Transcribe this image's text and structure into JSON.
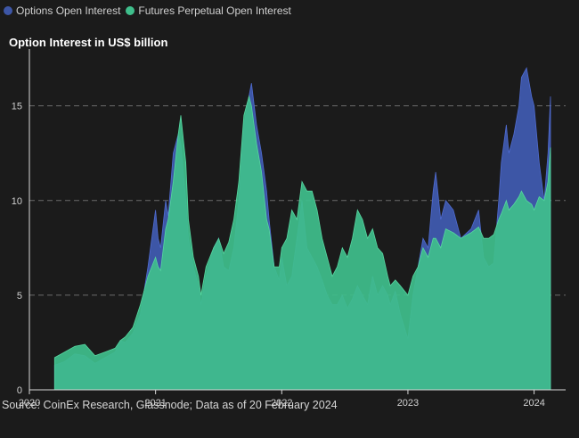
{
  "legend": {
    "items": [
      {
        "label": "Options Open Interest",
        "color": "#3d56a6"
      },
      {
        "label": "Futures Perpetual Open Interest",
        "color": "#3fbf8c"
      }
    ]
  },
  "chart_title": "Option Interest in US$ billion",
  "source": "Source: CoinEx Research, Glassnode; Data as of 20 February 2024",
  "chart_data": {
    "type": "area",
    "title": "Option Interest in US$ billion",
    "xlabel": "",
    "ylabel": "",
    "x_ticks": [
      "2020",
      "2021",
      "2022",
      "2023",
      "2024"
    ],
    "y_ticks": [
      0,
      5,
      10,
      15
    ],
    "xlim": [
      2020.0,
      2024.25
    ],
    "ylim": [
      0,
      18
    ],
    "grid": "horizontal dashed at 5, 10, 15",
    "series": [
      {
        "name": "Options Open Interest",
        "color": "#3d56a6",
        "x": [
          2020.2,
          2020.28,
          2020.36,
          2020.44,
          2020.52,
          2020.6,
          2020.68,
          2020.72,
          2020.76,
          2020.82,
          2020.88,
          2020.94,
          2021.0,
          2021.02,
          2021.04,
          2021.08,
          2021.1,
          2021.14,
          2021.18,
          2021.2,
          2021.24,
          2021.26,
          2021.3,
          2021.34,
          2021.36,
          2021.4,
          2021.46,
          2021.5,
          2021.54,
          2021.58,
          2021.62,
          2021.66,
          2021.7,
          2021.74,
          2021.76,
          2021.8,
          2021.84,
          2021.88,
          2021.9,
          2021.94,
          2021.98,
          2022.0,
          2022.04,
          2022.08,
          2022.12,
          2022.16,
          2022.2,
          2022.24,
          2022.28,
          2022.32,
          2022.36,
          2022.4,
          2022.44,
          2022.48,
          2022.52,
          2022.56,
          2022.6,
          2022.64,
          2022.68,
          2022.72,
          2022.76,
          2022.8,
          2022.84,
          2022.86,
          2022.9,
          2022.94,
          2023.0,
          2023.04,
          2023.08,
          2023.12,
          2023.16,
          2023.2,
          2023.22,
          2023.26,
          2023.3,
          2023.36,
          2023.42,
          2023.5,
          2023.56,
          2023.6,
          2023.64,
          2023.68,
          2023.72,
          2023.74,
          2023.78,
          2023.8,
          2023.84,
          2023.88,
          2023.9,
          2023.94,
          2023.98,
          2024.0,
          2024.04,
          2024.08,
          2024.11,
          2024.13
        ],
        "values": [
          1.3,
          1.5,
          1.9,
          1.8,
          1.4,
          1.7,
          2.0,
          2.6,
          2.5,
          3.0,
          4.0,
          6.5,
          9.5,
          8.0,
          7.5,
          10.0,
          9.2,
          12.5,
          13.5,
          13.0,
          10.0,
          8.0,
          6.5,
          5.5,
          4.5,
          6.0,
          7.5,
          8.0,
          6.5,
          6.3,
          7.5,
          10.0,
          14.0,
          15.5,
          16.2,
          14.0,
          12.5,
          10.5,
          9.0,
          6.5,
          5.8,
          7.0,
          5.5,
          6.0,
          8.0,
          10.0,
          7.5,
          7.0,
          6.5,
          5.8,
          5.0,
          4.5,
          4.5,
          5.0,
          4.3,
          4.8,
          5.5,
          5.0,
          4.5,
          6.0,
          5.0,
          5.5,
          5.0,
          4.5,
          5.2,
          4.0,
          2.7,
          5.0,
          6.5,
          8.0,
          7.5,
          10.5,
          11.5,
          9.0,
          10.0,
          9.5,
          8.0,
          8.5,
          9.5,
          7.0,
          6.5,
          6.7,
          10.0,
          12.0,
          14.0,
          12.5,
          13.5,
          15.0,
          16.5,
          17.0,
          15.5,
          15.0,
          12.0,
          10.0,
          12.5,
          15.5
        ]
      },
      {
        "name": "Futures Perpetual Open Interest",
        "color": "#3fbf8c",
        "x": [
          2020.2,
          2020.28,
          2020.36,
          2020.44,
          2020.52,
          2020.6,
          2020.68,
          2020.72,
          2020.76,
          2020.82,
          2020.88,
          2020.94,
          2021.0,
          2021.02,
          2021.04,
          2021.08,
          2021.1,
          2021.14,
          2021.18,
          2021.2,
          2021.24,
          2021.26,
          2021.3,
          2021.34,
          2021.36,
          2021.4,
          2021.46,
          2021.5,
          2021.54,
          2021.58,
          2021.62,
          2021.66,
          2021.7,
          2021.74,
          2021.76,
          2021.8,
          2021.84,
          2021.88,
          2021.9,
          2021.94,
          2021.98,
          2022.0,
          2022.04,
          2022.08,
          2022.12,
          2022.16,
          2022.2,
          2022.24,
          2022.28,
          2022.32,
          2022.36,
          2022.4,
          2022.44,
          2022.48,
          2022.52,
          2022.56,
          2022.6,
          2022.64,
          2022.68,
          2022.72,
          2022.76,
          2022.8,
          2022.84,
          2022.86,
          2022.9,
          2022.94,
          2023.0,
          2023.04,
          2023.08,
          2023.12,
          2023.16,
          2023.2,
          2023.22,
          2023.26,
          2023.3,
          2023.36,
          2023.42,
          2023.5,
          2023.56,
          2023.6,
          2023.64,
          2023.68,
          2023.72,
          2023.74,
          2023.78,
          2023.8,
          2023.84,
          2023.88,
          2023.9,
          2023.94,
          2023.98,
          2024.0,
          2024.04,
          2024.08,
          2024.11,
          2024.13
        ],
        "values": [
          1.7,
          2.0,
          2.3,
          2.4,
          1.8,
          2.0,
          2.2,
          2.6,
          2.8,
          3.3,
          4.5,
          6.0,
          7.0,
          6.5,
          6.3,
          8.5,
          9.0,
          11.0,
          13.5,
          14.5,
          12.0,
          9.0,
          7.0,
          6.0,
          5.0,
          6.5,
          7.5,
          8.0,
          7.2,
          7.8,
          9.0,
          11.0,
          14.5,
          15.5,
          15.0,
          13.0,
          11.5,
          9.0,
          8.5,
          6.5,
          6.5,
          7.5,
          8.0,
          9.5,
          9.0,
          11.0,
          10.5,
          10.5,
          9.5,
          8.0,
          7.0,
          6.0,
          6.5,
          7.5,
          7.0,
          8.0,
          9.5,
          9.0,
          8.0,
          8.5,
          7.5,
          7.2,
          6.0,
          5.5,
          5.8,
          5.5,
          5.0,
          6.0,
          6.5,
          7.5,
          7.0,
          8.0,
          8.0,
          7.5,
          8.5,
          8.3,
          8.0,
          8.3,
          8.6,
          8.0,
          8.0,
          8.2,
          9.0,
          9.3,
          10.0,
          9.5,
          9.8,
          10.2,
          10.5,
          10.0,
          9.8,
          9.5,
          10.2,
          10.0,
          11.0,
          12.8
        ]
      }
    ]
  }
}
